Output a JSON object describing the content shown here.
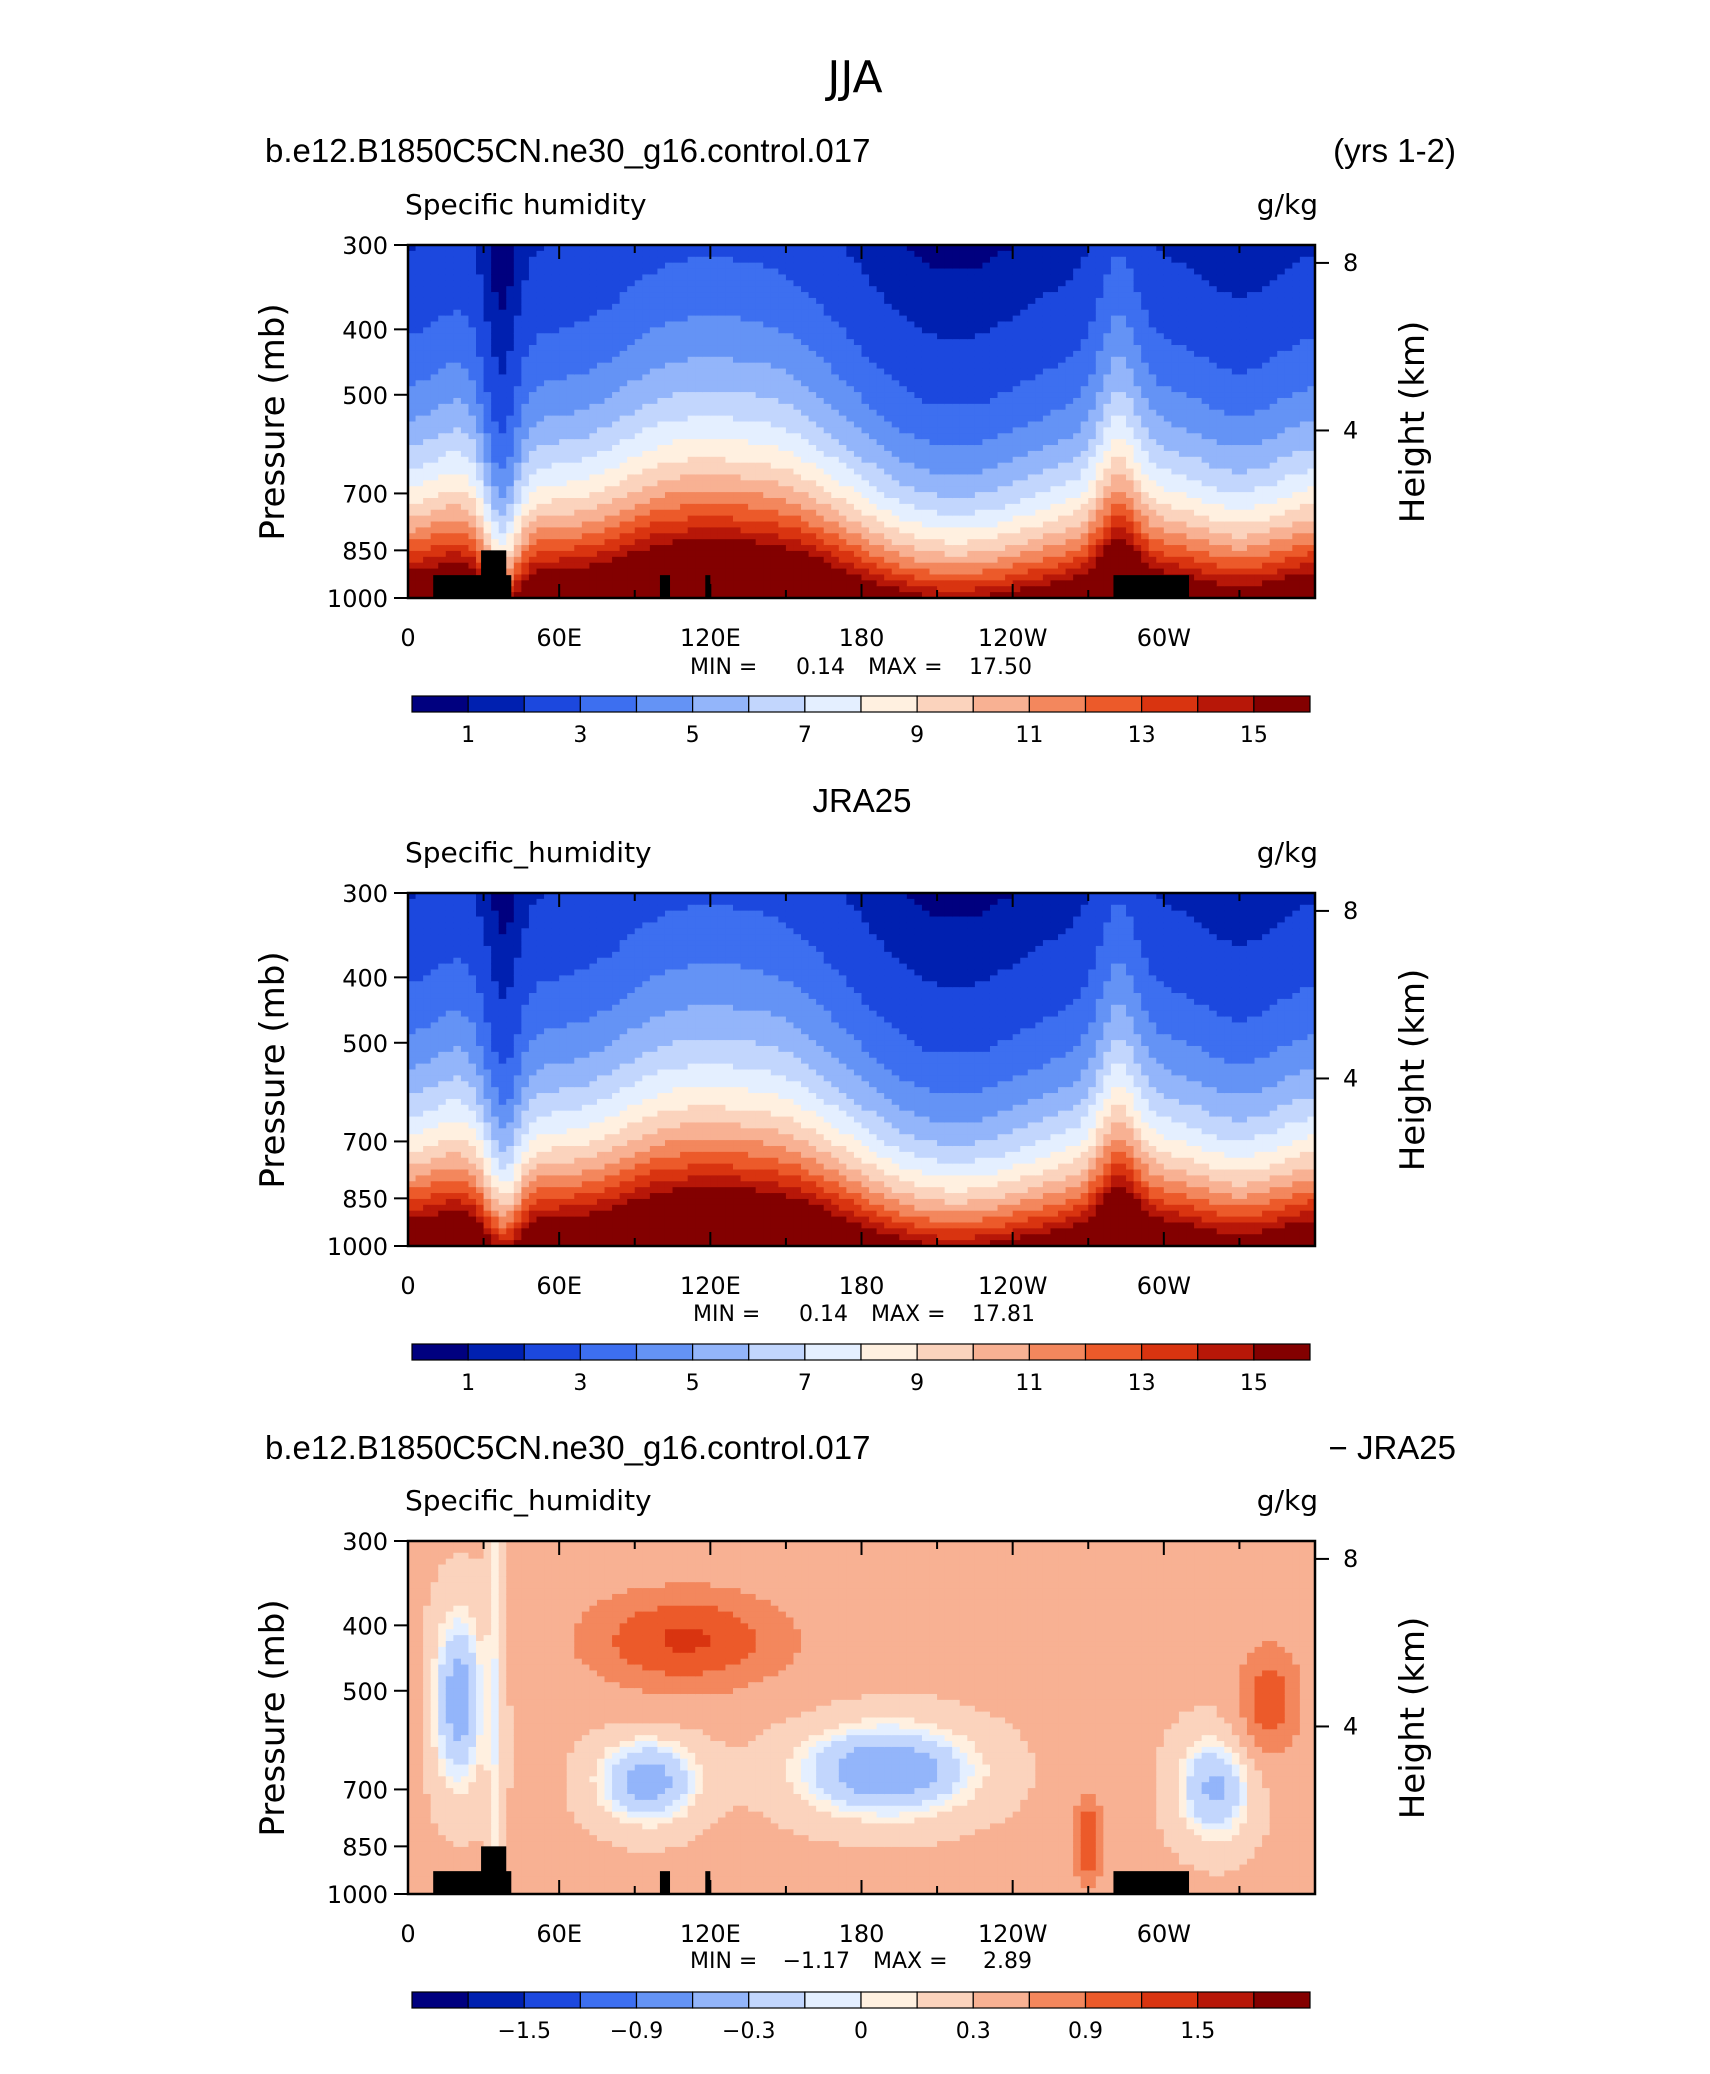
{
  "page_title": "JJA",
  "colors": {
    "seq_scale": [
      "#00007f",
      "#0020b0",
      "#1c48de",
      "#3d6ff0",
      "#6493f5",
      "#93b5fa",
      "#c2d6fd",
      "#e4efff",
      "#fff0e0",
      "#fbd3bd",
      "#f8b193",
      "#f3875d",
      "#ec5a2a",
      "#d93410",
      "#b71708",
      "#830000"
    ],
    "diff_scale": [
      "#00007f",
      "#0020b0",
      "#1c48de",
      "#3d6ff0",
      "#6493f5",
      "#93b5fa",
      "#c2d6fd",
      "#e4efff",
      "#fff0e0",
      "#fbd3bd",
      "#f8b193",
      "#f3875d",
      "#ec5a2a",
      "#d93410",
      "#b71708",
      "#830000"
    ],
    "terrain": "#000000"
  },
  "chart_data": [
    {
      "type": "heatmap",
      "header_left": "b.e12.B1850C5CN.ne30_g16.control.017",
      "header_right": "(yrs 1-2)",
      "subtitle_left": "Specific humidity",
      "subtitle_right": "g/kg",
      "ylabel": "Pressure (mb)",
      "ylabel_right": "Height (km)",
      "x_ticks": [
        "0",
        "60E",
        "120E",
        "180",
        "120W",
        "60W"
      ],
      "y_ticks": [
        "300",
        "400",
        "500",
        "700",
        "850",
        "1000"
      ],
      "y_ticks_right": [
        "8",
        "4"
      ],
      "stats": {
        "min_label": "MIN =",
        "min": "0.14",
        "max_label": "MAX =",
        "max": "17.50"
      },
      "colorbar_labels": [
        "1",
        "3",
        "5",
        "7",
        "9",
        "11",
        "13",
        "15"
      ],
      "colorbar_scale": "seq",
      "xlim": [
        0,
        360
      ],
      "ylim": [
        1000,
        300
      ],
      "y_scale": "log"
    },
    {
      "type": "heatmap",
      "header_center": "JRA25",
      "subtitle_left": "Specific_humidity",
      "subtitle_right": "g/kg",
      "ylabel": "Pressure (mb)",
      "ylabel_right": "Height (km)",
      "x_ticks": [
        "0",
        "60E",
        "120E",
        "180",
        "120W",
        "60W"
      ],
      "y_ticks": [
        "300",
        "400",
        "500",
        "700",
        "850",
        "1000"
      ],
      "y_ticks_right": [
        "8",
        "4"
      ],
      "stats": {
        "min_label": "MIN =",
        "min": "0.14",
        "max_label": "MAX =",
        "max": "17.81"
      },
      "colorbar_labels": [
        "1",
        "3",
        "5",
        "7",
        "9",
        "11",
        "13",
        "15"
      ],
      "colorbar_scale": "seq",
      "xlim": [
        0,
        360
      ],
      "ylim": [
        1000,
        300
      ],
      "y_scale": "log"
    },
    {
      "type": "heatmap",
      "header_left": "b.e12.B1850C5CN.ne30_g16.control.017",
      "header_right": "- JRA25",
      "subtitle_left": "Specific_humidity",
      "subtitle_right": "g/kg",
      "ylabel": "Pressure (mb)",
      "ylabel_right": "Height (km)",
      "x_ticks": [
        "0",
        "60E",
        "120E",
        "180",
        "120W",
        "60W"
      ],
      "y_ticks": [
        "300",
        "400",
        "500",
        "700",
        "850",
        "1000"
      ],
      "y_ticks_right": [
        "8",
        "4"
      ],
      "stats": {
        "min_label": "MIN =",
        "min": "-1.17",
        "max_label": "MAX =",
        "max": "2.89"
      },
      "colorbar_labels": [
        "-1.5",
        "-0.9",
        "-0.3",
        "0",
        "0.3",
        "0.9",
        "1.5"
      ],
      "colorbar_scale": "diff",
      "xlim": [
        0,
        360
      ],
      "ylim": [
        1000,
        300
      ],
      "y_scale": "log"
    }
  ]
}
